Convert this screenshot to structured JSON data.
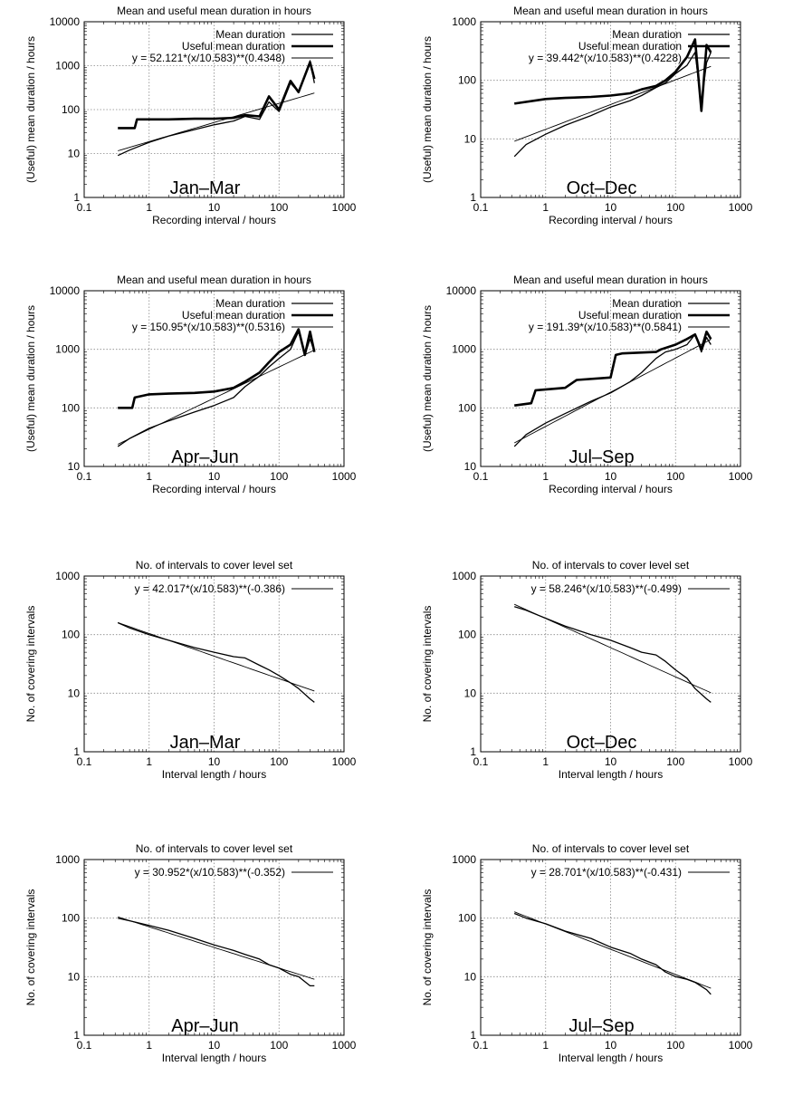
{
  "figure": {
    "colors": {
      "grid": "#888888",
      "line": "#000000",
      "background": "#ffffff"
    }
  },
  "chart_data": [
    {
      "type": "line",
      "title": "Mean and useful mean duration in hours",
      "xlabel": "Recording interval / hours",
      "ylabel": "(Useful) mean duration / hours",
      "xscale": "log",
      "yscale": "log",
      "xlim": [
        0.1,
        1000
      ],
      "ylim": [
        1,
        10000
      ],
      "xticks": [
        "0.1",
        "1",
        "10",
        "100",
        "1000"
      ],
      "yticks": [
        "1",
        "10",
        "100",
        "1000",
        "10000"
      ],
      "grid": true,
      "legend": "top-right",
      "annotation": "Jan–Mar",
      "series": [
        {
          "name": "Mean duration",
          "style": "thin",
          "x": [
            0.33,
            0.5,
            1,
            2,
            5,
            10,
            20,
            30,
            50,
            70,
            100,
            150,
            200,
            300,
            350
          ],
          "y": [
            9,
            12,
            18,
            25,
            35,
            45,
            55,
            70,
            60,
            150,
            90,
            400,
            250,
            1300,
            400
          ]
        },
        {
          "name": "Useful mean duration",
          "style": "thick",
          "x": [
            0.33,
            0.6,
            0.65,
            1,
            2,
            5,
            10,
            20,
            30,
            50,
            70,
            100,
            150,
            200,
            300,
            350
          ],
          "y": [
            38,
            38,
            60,
            60,
            60,
            62,
            62,
            65,
            75,
            70,
            200,
            100,
            450,
            250,
            1200,
            500
          ]
        },
        {
          "name": "y = 52.121*(x/10.583)**(0.4348)",
          "style": "fit",
          "fit": {
            "a": 52.121,
            "x0": 10.583,
            "b": 0.4348
          },
          "x": [
            0.33,
            350
          ]
        }
      ]
    },
    {
      "type": "line",
      "title": "Mean and useful mean duration in hours",
      "xlabel": "Recording interval / hours",
      "ylabel": "(Useful) mean duration / hours",
      "xscale": "log",
      "yscale": "log",
      "xlim": [
        0.1,
        1000
      ],
      "ylim": [
        1,
        1000
      ],
      "xticks": [
        "0.1",
        "1",
        "10",
        "100",
        "1000"
      ],
      "yticks": [
        "1",
        "10",
        "100",
        "1000"
      ],
      "grid": true,
      "legend": "top-right",
      "annotation": "Oct–Dec",
      "series": [
        {
          "name": "Mean duration",
          "style": "thin",
          "x": [
            0.33,
            0.5,
            1,
            2,
            5,
            10,
            20,
            30,
            50,
            70,
            100,
            150,
            200,
            250,
            300,
            350
          ],
          "y": [
            5,
            8,
            12,
            17,
            25,
            35,
            45,
            55,
            75,
            90,
            130,
            180,
            300,
            40,
            200,
            300
          ]
        },
        {
          "name": "Useful mean duration",
          "style": "thick",
          "x": [
            0.33,
            1,
            2,
            5,
            10,
            20,
            30,
            50,
            70,
            100,
            150,
            200,
            250,
            300,
            350
          ],
          "y": [
            40,
            48,
            50,
            52,
            55,
            60,
            70,
            80,
            100,
            140,
            250,
            500,
            30,
            400,
            300
          ]
        },
        {
          "name": "y = 39.442*(x/10.583)**(0.4228)",
          "style": "fit",
          "fit": {
            "a": 39.442,
            "x0": 10.583,
            "b": 0.4228
          },
          "x": [
            0.33,
            350
          ]
        }
      ]
    },
    {
      "type": "line",
      "title": "Mean and useful mean duration in hours",
      "xlabel": "Recording interval / hours",
      "ylabel": "(Useful) mean duration / hours",
      "xscale": "log",
      "yscale": "log",
      "xlim": [
        0.1,
        1000
      ],
      "ylim": [
        10,
        10000
      ],
      "xticks": [
        "0.1",
        "1",
        "10",
        "100",
        "1000"
      ],
      "yticks": [
        "10",
        "100",
        "1000",
        "10000"
      ],
      "grid": true,
      "legend": "top-right",
      "annotation": "Apr–Jun",
      "series": [
        {
          "name": "Mean duration",
          "style": "thin",
          "x": [
            0.33,
            0.5,
            1,
            2,
            5,
            10,
            20,
            30,
            50,
            70,
            100,
            150,
            200,
            250,
            300,
            350
          ],
          "y": [
            22,
            30,
            45,
            60,
            85,
            110,
            150,
            230,
            350,
            500,
            700,
            1000,
            2000,
            800,
            1500,
            900
          ]
        },
        {
          "name": "Useful mean duration",
          "style": "thick",
          "x": [
            0.33,
            0.55,
            0.6,
            1,
            2,
            5,
            10,
            20,
            30,
            50,
            70,
            100,
            150,
            200,
            250,
            300,
            350
          ],
          "y": [
            100,
            100,
            150,
            170,
            175,
            180,
            190,
            220,
            280,
            400,
            600,
            900,
            1200,
            2200,
            800,
            2000,
            900
          ]
        },
        {
          "name": "y = 150.95*(x/10.583)**(0.5316)",
          "style": "fit",
          "fit": {
            "a": 150.95,
            "x0": 10.583,
            "b": 0.5316
          },
          "x": [
            0.33,
            350
          ]
        }
      ]
    },
    {
      "type": "line",
      "title": "Mean and useful mean duration in hours",
      "xlabel": "Recording interval / hours",
      "ylabel": "(Useful) mean duration / hours",
      "xscale": "log",
      "yscale": "log",
      "xlim": [
        0.1,
        1000
      ],
      "ylim": [
        10,
        10000
      ],
      "xticks": [
        "0.1",
        "1",
        "10",
        "100",
        "1000"
      ],
      "yticks": [
        "10",
        "100",
        "1000",
        "10000"
      ],
      "grid": true,
      "legend": "top-right",
      "annotation": "Jul–Sep",
      "series": [
        {
          "name": "Mean duration",
          "style": "thin",
          "x": [
            0.33,
            0.5,
            1,
            2,
            5,
            10,
            20,
            30,
            50,
            70,
            100,
            150,
            200,
            250,
            300,
            350
          ],
          "y": [
            22,
            35,
            55,
            80,
            130,
            180,
            280,
            400,
            700,
            900,
            1000,
            1200,
            1800,
            900,
            1600,
            1200
          ]
        },
        {
          "name": "Useful mean duration",
          "style": "thick",
          "x": [
            0.33,
            0.6,
            0.7,
            2,
            3,
            10,
            12,
            15,
            50,
            60,
            100,
            150,
            200,
            250,
            300,
            350
          ],
          "y": [
            110,
            120,
            200,
            220,
            300,
            330,
            800,
            850,
            900,
            1000,
            1200,
            1500,
            1800,
            1000,
            2000,
            1500
          ]
        },
        {
          "name": "y = 191.39*(x/10.583)**(0.5841)",
          "style": "fit",
          "fit": {
            "a": 191.39,
            "x0": 10.583,
            "b": 0.5841
          },
          "x": [
            0.33,
            350
          ]
        }
      ]
    },
    {
      "type": "line",
      "title": "No. of intervals to cover level set",
      "xlabel": "Interval length / hours",
      "ylabel": "No. of covering intervals",
      "xscale": "log",
      "yscale": "log",
      "xlim": [
        0.1,
        1000
      ],
      "ylim": [
        1,
        1000
      ],
      "xticks": [
        "0.1",
        "1",
        "10",
        "100",
        "1000"
      ],
      "yticks": [
        "1",
        "10",
        "100",
        "1000"
      ],
      "grid": true,
      "legend": "top-right",
      "annotation": "Jan–Mar",
      "series": [
        {
          "style": "thin",
          "x": [
            0.33,
            0.5,
            1,
            2,
            5,
            10,
            20,
            30,
            50,
            70,
            100,
            150,
            200,
            300,
            350
          ],
          "y": [
            160,
            130,
            100,
            80,
            60,
            50,
            42,
            40,
            30,
            25,
            20,
            15,
            12,
            8,
            7
          ]
        },
        {
          "name": "y = 42.017*(x/10.583)**(-0.386)",
          "style": "fit",
          "fit": {
            "a": 42.017,
            "x0": 10.583,
            "b": -0.386
          },
          "x": [
            0.33,
            350
          ]
        }
      ]
    },
    {
      "type": "line",
      "title": "No. of intervals to cover level set",
      "xlabel": "Interval length / hours",
      "ylabel": "No. of covering intervals",
      "xscale": "log",
      "yscale": "log",
      "xlim": [
        0.1,
        1000
      ],
      "ylim": [
        1,
        1000
      ],
      "xticks": [
        "0.1",
        "1",
        "10",
        "100",
        "1000"
      ],
      "yticks": [
        "1",
        "10",
        "100",
        "1000"
      ],
      "grid": true,
      "legend": "top-right",
      "annotation": "Oct–Dec",
      "series": [
        {
          "style": "thin",
          "x": [
            0.33,
            0.5,
            1,
            2,
            5,
            10,
            20,
            30,
            50,
            70,
            100,
            150,
            200,
            300,
            350
          ],
          "y": [
            300,
            260,
            190,
            140,
            100,
            80,
            60,
            50,
            45,
            35,
            25,
            18,
            12,
            8,
            7
          ]
        },
        {
          "name": "y = 58.246*(x/10.583)**(-0.499)",
          "style": "fit",
          "fit": {
            "a": 58.246,
            "x0": 10.583,
            "b": -0.499
          },
          "x": [
            0.33,
            350
          ]
        }
      ]
    },
    {
      "type": "line",
      "title": "No. of intervals to cover level set",
      "xlabel": "Interval length / hours",
      "ylabel": "No. of covering intervals",
      "xscale": "log",
      "yscale": "log",
      "xlim": [
        0.1,
        1000
      ],
      "ylim": [
        1,
        1000
      ],
      "xticks": [
        "0.1",
        "1",
        "10",
        "100",
        "1000"
      ],
      "yticks": [
        "1",
        "10",
        "100",
        "1000"
      ],
      "grid": true,
      "legend": "top-right",
      "annotation": "Apr–Jun",
      "series": [
        {
          "style": "thin",
          "x": [
            0.33,
            0.5,
            1,
            2,
            5,
            10,
            20,
            30,
            50,
            70,
            100,
            150,
            200,
            300,
            350
          ],
          "y": [
            100,
            90,
            75,
            62,
            45,
            35,
            28,
            24,
            20,
            16,
            14,
            11,
            10,
            7,
            7
          ]
        },
        {
          "name": "y = 30.952*(x/10.583)**(-0.352)",
          "style": "fit",
          "fit": {
            "a": 30.952,
            "x0": 10.583,
            "b": -0.352
          },
          "x": [
            0.33,
            350
          ]
        }
      ]
    },
    {
      "type": "line",
      "title": "No. of intervals to cover level set",
      "xlabel": "Interval length / hours",
      "ylabel": "No. of covering intervals",
      "xscale": "log",
      "yscale": "log",
      "xlim": [
        0.1,
        1000
      ],
      "ylim": [
        1,
        1000
      ],
      "xticks": [
        "0.1",
        "1",
        "10",
        "100",
        "1000"
      ],
      "yticks": [
        "1",
        "10",
        "100",
        "1000"
      ],
      "grid": true,
      "legend": "top-right",
      "annotation": "Jul–Sep",
      "series": [
        {
          "style": "thin",
          "x": [
            0.33,
            0.5,
            1,
            2,
            5,
            10,
            20,
            30,
            50,
            70,
            100,
            150,
            200,
            300,
            350
          ],
          "y": [
            120,
            100,
            80,
            60,
            45,
            32,
            25,
            20,
            16,
            12,
            10,
            9,
            8,
            6,
            5
          ]
        },
        {
          "name": "y = 28.701*(x/10.583)**(-0.431)",
          "style": "fit",
          "fit": {
            "a": 28.701,
            "x0": 10.583,
            "b": -0.431
          },
          "x": [
            0.33,
            350
          ]
        }
      ]
    }
  ]
}
